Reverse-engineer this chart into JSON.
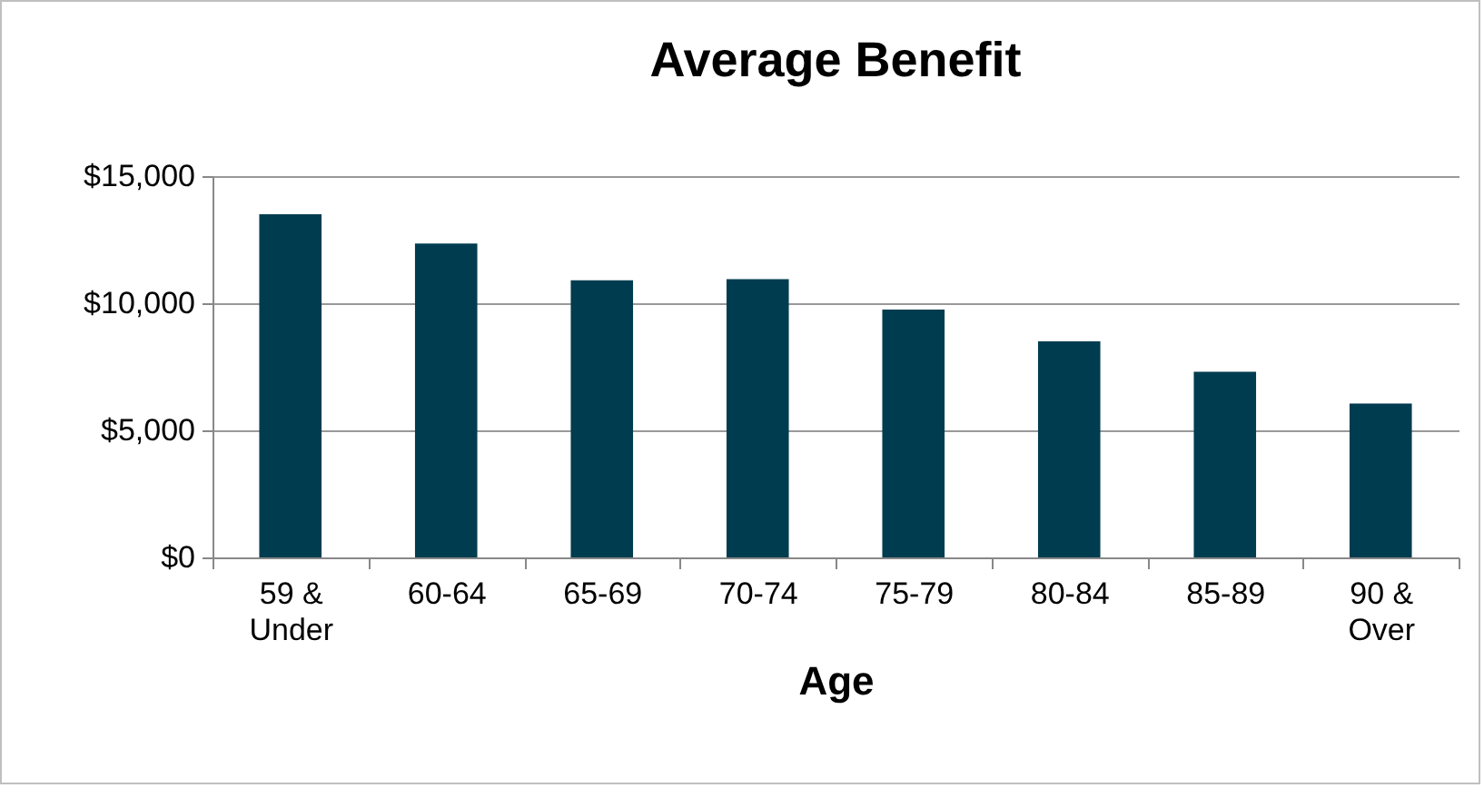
{
  "chart_data": {
    "type": "bar",
    "title": "Average Benefit",
    "xlabel": "Age",
    "categories": [
      "59 & Under",
      "60-64",
      "65-69",
      "70-74",
      "75-79",
      "80-84",
      "85-89",
      "90 & Over"
    ],
    "values": [
      13500,
      12350,
      10900,
      10950,
      9750,
      8500,
      7300,
      6050
    ],
    "color": "#003c50",
    "ylim": [
      0,
      15000
    ],
    "yticks": [
      {
        "value": 0,
        "label": "$0"
      },
      {
        "value": 5000,
        "label": "$5,000"
      },
      {
        "value": 10000,
        "label": "$10,000"
      },
      {
        "value": 15000,
        "label": "$15,000"
      }
    ],
    "grid": "y"
  }
}
